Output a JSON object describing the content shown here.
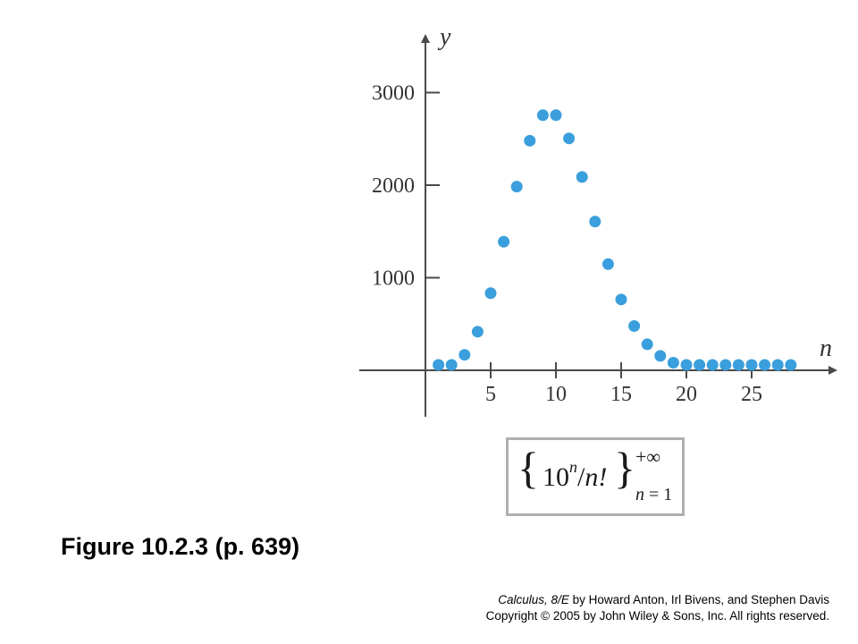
{
  "chart_data": {
    "type": "scatter",
    "title": "",
    "xlabel": "n",
    "ylabel": "y",
    "x_ticks": [
      5,
      10,
      15,
      20,
      25
    ],
    "y_ticks": [
      1000,
      2000,
      3000
    ],
    "x_tick_labels": [
      "5",
      "10",
      "15",
      "20",
      "25"
    ],
    "y_tick_labels": [
      "1000",
      "2000",
      "3000"
    ],
    "xlim": [
      -5,
      31
    ],
    "ylim": [
      -500,
      3750
    ],
    "grid": false,
    "point_color": "#3a9fdc",
    "x": [
      1,
      2,
      3,
      4,
      5,
      6,
      7,
      8,
      9,
      10,
      11,
      12,
      13,
      14,
      15,
      16,
      17,
      18,
      19,
      20,
      21,
      22,
      23,
      24,
      25,
      26,
      27,
      28
    ],
    "y": [
      10,
      50,
      167,
      417,
      833,
      1389,
      1984,
      2480,
      2756,
      2756,
      2505,
      2088,
      1606,
      1147,
      765,
      478,
      281,
      156,
      82,
      41,
      20,
      9,
      4,
      2,
      1,
      0,
      0,
      0
    ]
  },
  "formula": {
    "open_brace": "{",
    "base": "10",
    "exponent": "n",
    "slash": "/",
    "denominator": "n!",
    "close_brace": "}",
    "upper_limit": "+∞",
    "lower_var": "n",
    "lower_eq": " = 1"
  },
  "caption": "Figure 10.2.3  (p. 639)",
  "credits": {
    "line1_title": "Calculus, 8/E",
    "line1_rest": " by Howard Anton, Irl Bivens, and Stephen Davis",
    "line2": "Copyright © 2005 by John Wiley & Sons, Inc.  All rights reserved."
  }
}
